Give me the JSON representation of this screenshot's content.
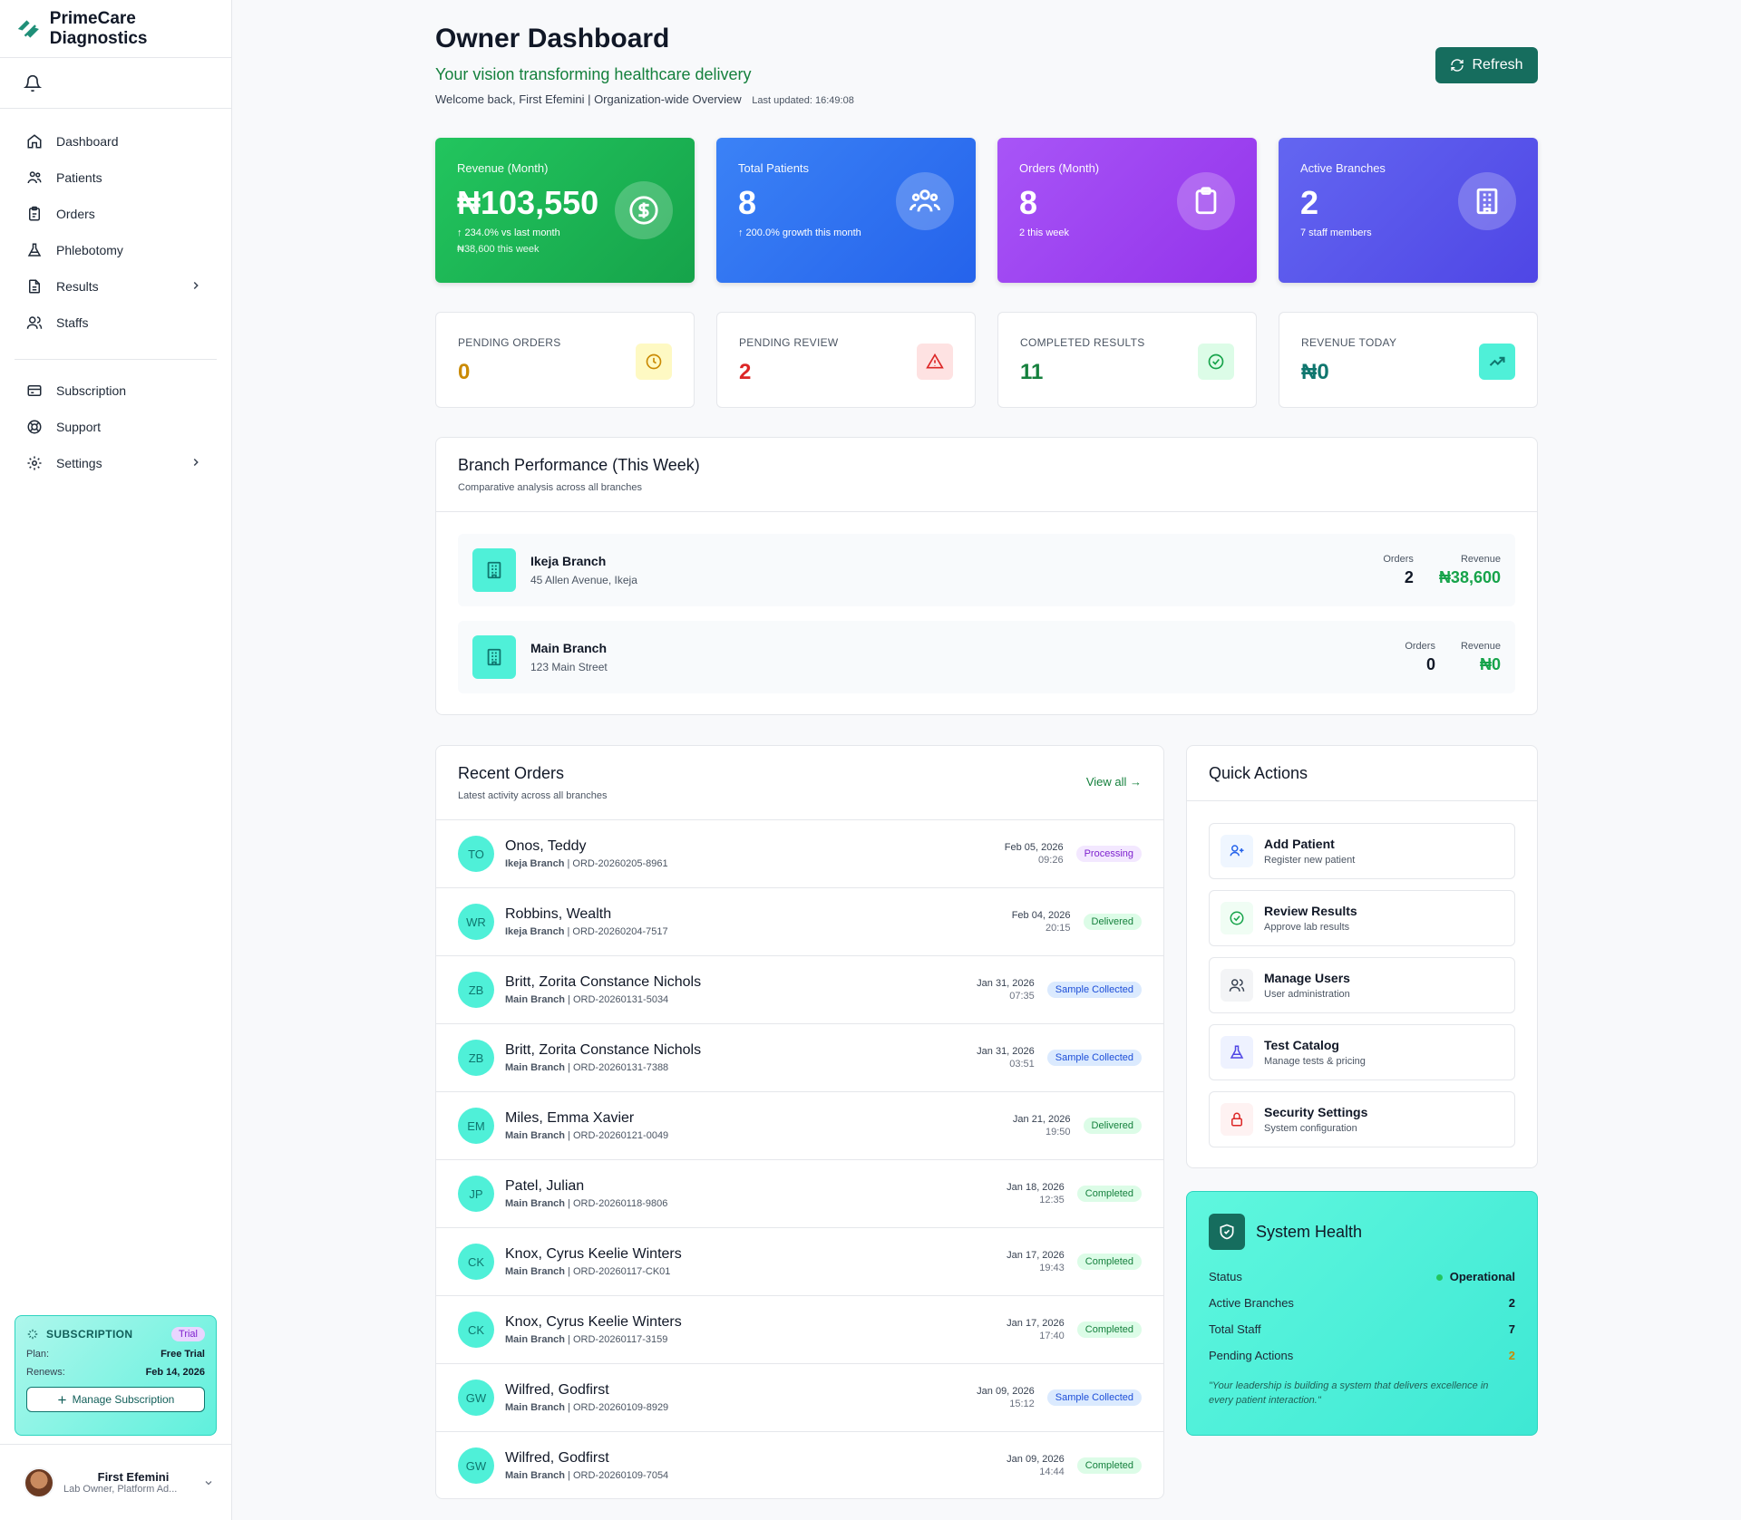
{
  "app": {
    "name": "PrimeCare Diagnostics"
  },
  "sidebar": {
    "items": [
      {
        "label": "Dashboard",
        "icon": "home-icon"
      },
      {
        "label": "Patients",
        "icon": "users-icon"
      },
      {
        "label": "Orders",
        "icon": "clipboard-icon"
      },
      {
        "label": "Phlebotomy",
        "icon": "flask-icon"
      },
      {
        "label": "Results",
        "icon": "document-icon"
      },
      {
        "label": "Staffs",
        "icon": "staff-icon"
      }
    ],
    "secondary": [
      {
        "label": "Subscription",
        "icon": "card-icon"
      },
      {
        "label": "Support",
        "icon": "lifebuoy-icon"
      },
      {
        "label": "Settings",
        "icon": "gear-icon"
      }
    ],
    "subscription": {
      "heading": "SUBSCRIPTION",
      "badge": "Trial",
      "plan_label": "Plan:",
      "plan_value": "Free Trial",
      "renews_label": "Renews:",
      "renews_value": "Feb 14, 2026",
      "button": "Manage Subscription"
    },
    "user": {
      "name": "First Efemini",
      "role": "Lab Owner, Platform Ad..."
    }
  },
  "header": {
    "title": "Owner Dashboard",
    "subtitle": "Your vision transforming healthcare delivery",
    "welcome": "Welcome back, First Efemini | Organization-wide Overview",
    "last_updated": "Last updated: 16:49:08",
    "refresh_label": "Refresh"
  },
  "kpis": [
    {
      "label": "Revenue (Month)",
      "value": "₦103,550",
      "sub1": "↑ 234.0% vs last month",
      "sub2": "₦38,600 this week",
      "icon": "dollar-icon"
    },
    {
      "label": "Total Patients",
      "value": "8",
      "sub1": "↑ 200.0% growth this month",
      "icon": "users-icon"
    },
    {
      "label": "Orders (Month)",
      "value": "8",
      "sub1": "2 this week",
      "icon": "clipboard-icon"
    },
    {
      "label": "Active Branches",
      "value": "2",
      "sub1": "7 staff members",
      "icon": "building-icon"
    }
  ],
  "stats": [
    {
      "label": "PENDING ORDERS",
      "value": "0",
      "color": "#ca8a04",
      "bg": "#fef9c3",
      "icon": "clock-icon"
    },
    {
      "label": "PENDING REVIEW",
      "value": "2",
      "color": "#dc2626",
      "bg": "#fee2e2",
      "icon": "alert-icon"
    },
    {
      "label": "COMPLETED RESULTS",
      "value": "11",
      "color": "#15803d",
      "bg": "#dcfce7",
      "icon": "check-circle-icon"
    },
    {
      "label": "REVENUE TODAY",
      "value": "₦0",
      "color": "#0f766e",
      "bg": "#4ff0d8",
      "icon": "trending-up-icon"
    }
  ],
  "branch_performance": {
    "title": "Branch Performance (This Week)",
    "subtitle": "Comparative analysis across all branches",
    "orders_label": "Orders",
    "revenue_label": "Revenue",
    "branches": [
      {
        "name": "Ikeja Branch",
        "address": "45 Allen Avenue, Ikeja",
        "orders": "2",
        "revenue": "₦38,600"
      },
      {
        "name": "Main Branch",
        "address": "123 Main Street",
        "orders": "0",
        "revenue": "₦0"
      }
    ]
  },
  "recent_orders": {
    "title": "Recent Orders",
    "subtitle": "Latest activity across all branches",
    "view_all": "View all →",
    "orders": [
      {
        "initials": "TO",
        "name": "Onos, Teddy",
        "branch": "Ikeja Branch",
        "id": "| ORD-20260205-8961",
        "date": "Feb 05, 2026",
        "time": "09:26",
        "status": "Processing",
        "kind": "processing"
      },
      {
        "initials": "WR",
        "name": "Robbins, Wealth",
        "branch": "Ikeja Branch",
        "id": "| ORD-20260204-7517",
        "date": "Feb 04, 2026",
        "time": "20:15",
        "status": "Delivered",
        "kind": "delivered"
      },
      {
        "initials": "ZB",
        "name": "Britt, Zorita Constance Nichols",
        "branch": "Main Branch",
        "id": "| ORD-20260131-5034",
        "date": "Jan 31, 2026",
        "time": "07:35",
        "status": "Sample Collected",
        "kind": "sample"
      },
      {
        "initials": "ZB",
        "name": "Britt, Zorita Constance Nichols",
        "branch": "Main Branch",
        "id": "| ORD-20260131-7388",
        "date": "Jan 31, 2026",
        "time": "03:51",
        "status": "Sample Collected",
        "kind": "sample"
      },
      {
        "initials": "EM",
        "name": "Miles, Emma Xavier",
        "branch": "Main Branch",
        "id": "| ORD-20260121-0049",
        "date": "Jan 21, 2026",
        "time": "19:50",
        "status": "Delivered",
        "kind": "delivered"
      },
      {
        "initials": "JP",
        "name": "Patel, Julian",
        "branch": "Main Branch",
        "id": "| ORD-20260118-9806",
        "date": "Jan 18, 2026",
        "time": "12:35",
        "status": "Completed",
        "kind": "completed"
      },
      {
        "initials": "CK",
        "name": "Knox, Cyrus Keelie Winters",
        "branch": "Main Branch",
        "id": "| ORD-20260117-CK01",
        "date": "Jan 17, 2026",
        "time": "19:43",
        "status": "Completed",
        "kind": "completed"
      },
      {
        "initials": "CK",
        "name": "Knox, Cyrus Keelie Winters",
        "branch": "Main Branch",
        "id": "| ORD-20260117-3159",
        "date": "Jan 17, 2026",
        "time": "17:40",
        "status": "Completed",
        "kind": "completed"
      },
      {
        "initials": "GW",
        "name": "Wilfred, Godfirst",
        "branch": "Main Branch",
        "id": "| ORD-20260109-8929",
        "date": "Jan 09, 2026",
        "time": "15:12",
        "status": "Sample Collected",
        "kind": "sample"
      },
      {
        "initials": "GW",
        "name": "Wilfred, Godfirst",
        "branch": "Main Branch",
        "id": "| ORD-20260109-7054",
        "date": "Jan 09, 2026",
        "time": "14:44",
        "status": "Completed",
        "kind": "completed"
      }
    ]
  },
  "quick_actions": {
    "title": "Quick Actions",
    "items": [
      {
        "title": "Add Patient",
        "sub": "Register new patient",
        "icon": "user-plus-icon",
        "bg": "#eff6ff",
        "color": "#2563eb"
      },
      {
        "title": "Review Results",
        "sub": "Approve lab results",
        "icon": "check-circle-icon",
        "bg": "#f0fdf4",
        "color": "#16a34a"
      },
      {
        "title": "Manage Users",
        "sub": "User administration",
        "icon": "users-icon",
        "bg": "#f3f4f6",
        "color": "#374151"
      },
      {
        "title": "Test Catalog",
        "sub": "Manage tests & pricing",
        "icon": "flask-icon",
        "bg": "#eef2ff",
        "color": "#4f46e5"
      },
      {
        "title": "Security Settings",
        "sub": "System configuration",
        "icon": "lock-icon",
        "bg": "#fef2f2",
        "color": "#dc2626"
      }
    ]
  },
  "system_health": {
    "title": "System Health",
    "rows": [
      {
        "label": "Status",
        "value": "Operational",
        "color": "#111827"
      },
      {
        "label": "Active Branches",
        "value": "2",
        "color": "#111827"
      },
      {
        "label": "Total Staff",
        "value": "7",
        "color": "#111827"
      },
      {
        "label": "Pending Actions",
        "value": "2",
        "color": "#ca8a04"
      }
    ],
    "quote": "\"Your leadership is building a system that delivers excellence in every patient interaction.\""
  }
}
